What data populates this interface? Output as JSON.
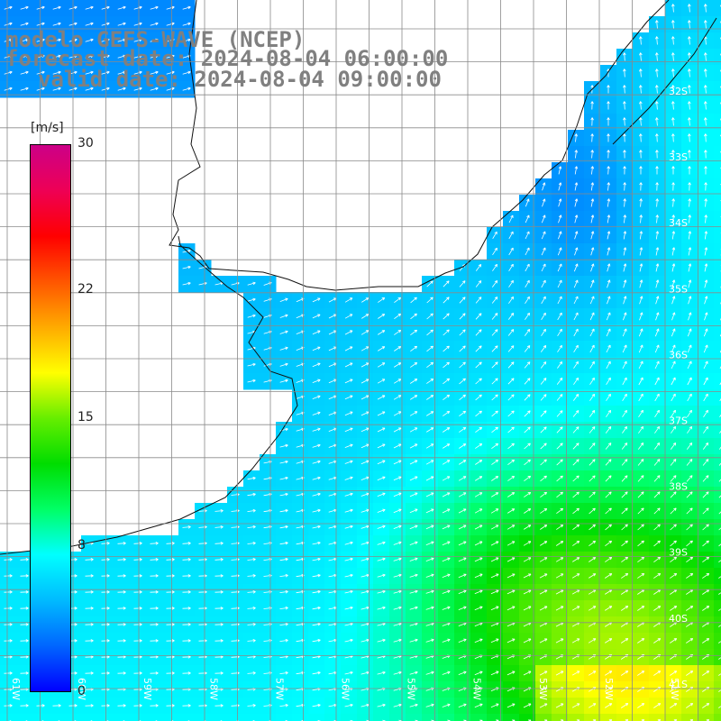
{
  "title": {
    "line1": "modelo GEFS-WAVE (NCEP)",
    "line2": "forecast date: 2024-08-04 06:00:00",
    "line3": "valid date: 2024-08-04 09:00:00"
  },
  "colorbar": {
    "unit": "[m/s]",
    "ticks": [
      {
        "value": 30,
        "label": "30"
      },
      {
        "value": 22,
        "label": "22"
      },
      {
        "value": 15,
        "label": "15"
      },
      {
        "value": 8,
        "label": "8"
      },
      {
        "value": 0,
        "label": "0"
      }
    ],
    "min": 0,
    "max": 30,
    "colors": [
      "#0000ff",
      "#0066ff",
      "#00bbff",
      "#00ffff",
      "#00ff66",
      "#00dd00",
      "#66ee00",
      "#ffff00",
      "#ffaa00",
      "#ff5500",
      "#ff0000",
      "#ee0055",
      "#cc0088"
    ]
  },
  "map": {
    "lon_range": [
      -61.5,
      -50.5
    ],
    "lat_range": [
      -41.5,
      -31.0
    ],
    "lat_labels": [
      "32S",
      "33S",
      "34S",
      "35S",
      "36S",
      "37S",
      "38S",
      "39S",
      "40S",
      "41S"
    ],
    "lon_labels": [
      "61W",
      "60W",
      "59W",
      "58W",
      "57W",
      "56W",
      "55W",
      "54W",
      "53W",
      "52W",
      "51W"
    ],
    "grid_color": "#8a8a8a",
    "coast_color": "#111111",
    "arrow_color": "#ffffff"
  }
}
